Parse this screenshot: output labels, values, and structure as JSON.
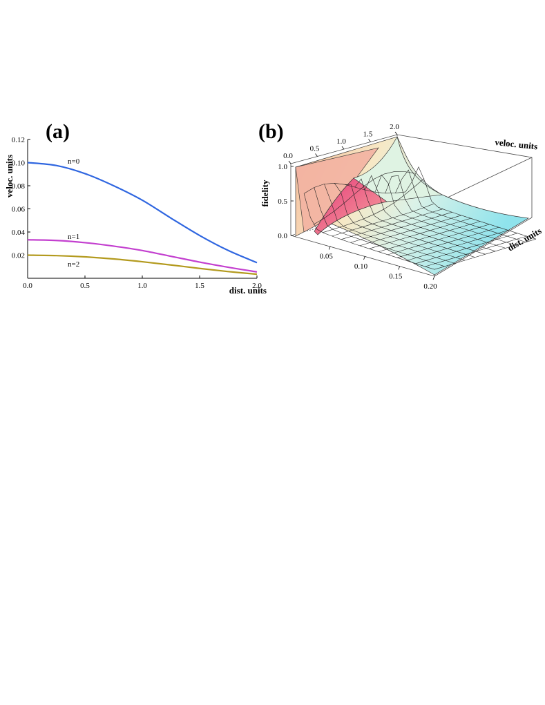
{
  "chart_data": [
    {
      "panel": "(a)",
      "type": "line",
      "xlabel": "dist. units",
      "ylabel": "veloc. units",
      "xlim": [
        0,
        2
      ],
      "ylim": [
        0,
        0.12
      ],
      "xticks": [
        "0.0",
        "0.5",
        "1.0",
        "1.5",
        "2.0"
      ],
      "yticks": [
        "0.02",
        "0.04",
        "0.06",
        "0.08",
        "0.10",
        "0.12"
      ],
      "grid": false,
      "x": [
        0,
        0.25,
        0.5,
        0.75,
        1.0,
        1.25,
        1.5,
        1.75,
        2.0
      ],
      "series": [
        {
          "name": "n=0",
          "color": "#2f66e0",
          "values": [
            0.1,
            0.0975,
            0.0905,
            0.08,
            0.0675,
            0.052,
            0.037,
            0.024,
            0.0135
          ]
        },
        {
          "name": "n=1",
          "color": "#c33fcf",
          "values": [
            0.0333,
            0.0327,
            0.0308,
            0.0278,
            0.024,
            0.019,
            0.014,
            0.0095,
            0.0055
          ]
        },
        {
          "name": "n=2",
          "color": "#b39a1e",
          "values": [
            0.02,
            0.0196,
            0.0185,
            0.0167,
            0.0143,
            0.0115,
            0.0085,
            0.0058,
            0.0035
          ]
        }
      ]
    },
    {
      "panel": "(b)",
      "type": "surface",
      "zlabel": "fidelity",
      "xlabel": "dist. units",
      "ylabel": "veloc. units",
      "xlim": [
        0,
        0.2
      ],
      "ylim": [
        0,
        2.0
      ],
      "zlim": [
        0,
        1.0
      ],
      "xticks": [
        "0.05",
        "0.10",
        "0.15",
        "0.20"
      ],
      "yticks": [
        "0.0",
        "0.5",
        "1.0",
        "1.5",
        "2.0"
      ],
      "zticks": [
        "0.0",
        "0.5",
        "1.0"
      ],
      "colormap": [
        "#e23a78",
        "#f7c09a",
        "#f7ecc6",
        "#d9f1ea",
        "#7fe0ea"
      ]
    }
  ]
}
